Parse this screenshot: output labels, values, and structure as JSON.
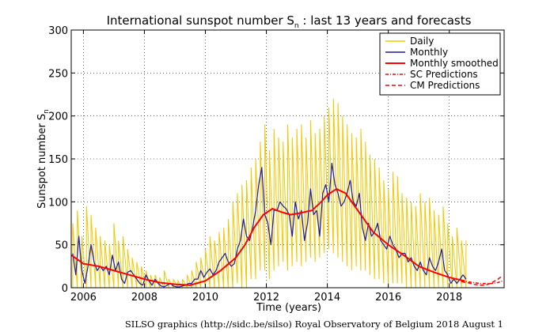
{
  "chart_data": {
    "type": "line",
    "title_main": "International sunspot number S",
    "title_sub": "n",
    "title_rest": " : last 13 years and forecasts",
    "xlabel": "Time (years)",
    "ylabel_main": "Sunspot number S",
    "ylabel_sub": "n",
    "xlim": [
      2005.6,
      2019.8
    ],
    "ylim": [
      0,
      300
    ],
    "x_ticks": [
      2006,
      2008,
      2010,
      2012,
      2014,
      2016,
      2018
    ],
    "y_ticks": [
      0,
      50,
      100,
      150,
      200,
      250,
      300
    ],
    "grid": true,
    "legend_position": "top-right",
    "footer": "SILSO graphics (http://sidc.be/silso)  Royal Observatory of Belgium  2018 August 1",
    "colors": {
      "daily": "#f0c800",
      "monthly": "#1a1aa0",
      "smoothed": "#ff0000",
      "sc": "#ff0000",
      "cm": "#ff0000"
    },
    "series": [
      {
        "name": "Daily",
        "style": "daily",
        "x": [
          2005.65,
          2005.8,
          2005.95,
          2006.1,
          2006.25,
          2006.4,
          2006.55,
          2006.7,
          2006.85,
          2007.0,
          2007.15,
          2007.3,
          2007.45,
          2007.6,
          2007.75,
          2007.9,
          2008.05,
          2008.2,
          2008.35,
          2008.5,
          2008.65,
          2008.8,
          2008.95,
          2009.1,
          2009.25,
          2009.4,
          2009.55,
          2009.7,
          2009.85,
          2010.0,
          2010.15,
          2010.3,
          2010.45,
          2010.6,
          2010.75,
          2010.9,
          2011.05,
          2011.2,
          2011.35,
          2011.5,
          2011.65,
          2011.8,
          2011.95,
          2012.1,
          2012.25,
          2012.4,
          2012.55,
          2012.7,
          2012.85,
          2013.0,
          2013.15,
          2013.3,
          2013.45,
          2013.6,
          2013.75,
          2013.9,
          2014.05,
          2014.2,
          2014.35,
          2014.5,
          2014.65,
          2014.8,
          2014.95,
          2015.1,
          2015.25,
          2015.4,
          2015.55,
          2015.7,
          2015.85,
          2016.0,
          2016.15,
          2016.3,
          2016.45,
          2016.6,
          2016.75,
          2016.9,
          2017.05,
          2017.2,
          2017.35,
          2017.5,
          2017.65,
          2017.8,
          2017.95,
          2018.1,
          2018.25,
          2018.4,
          2018.55
        ],
        "y_high": [
          75,
          90,
          60,
          95,
          85,
          70,
          60,
          55,
          50,
          75,
          55,
          60,
          45,
          35,
          30,
          25,
          20,
          15,
          15,
          12,
          20,
          10,
          10,
          8,
          10,
          15,
          20,
          30,
          35,
          45,
          60,
          55,
          65,
          70,
          80,
          100,
          110,
          120,
          125,
          140,
          150,
          170,
          190,
          160,
          185,
          175,
          170,
          190,
          175,
          185,
          190,
          175,
          195,
          180,
          185,
          200,
          210,
          220,
          215,
          200,
          190,
          180,
          175,
          185,
          170,
          155,
          150,
          140,
          125,
          115,
          135,
          130,
          110,
          105,
          100,
          95,
          110,
          100,
          105,
          90,
          85,
          95,
          75,
          60,
          70,
          55,
          55
        ],
        "y_low": [
          0,
          0,
          0,
          0,
          0,
          0,
          0,
          0,
          0,
          0,
          0,
          0,
          0,
          0,
          0,
          0,
          0,
          0,
          0,
          0,
          0,
          0,
          0,
          0,
          0,
          0,
          0,
          0,
          0,
          0,
          0,
          0,
          0,
          0,
          0,
          0,
          5,
          0,
          0,
          10,
          10,
          20,
          20,
          10,
          20,
          25,
          30,
          20,
          25,
          30,
          25,
          30,
          35,
          30,
          35,
          40,
          45,
          40,
          35,
          30,
          25,
          20,
          25,
          20,
          20,
          15,
          10,
          10,
          5,
          5,
          5,
          5,
          5,
          0,
          0,
          0,
          0,
          0,
          0,
          0,
          0,
          0,
          0,
          0,
          0,
          0,
          0
        ]
      },
      {
        "name": "Monthly",
        "style": "monthly",
        "x": [
          2005.65,
          2005.75,
          2005.85,
          2005.95,
          2006.05,
          2006.15,
          2006.25,
          2006.35,
          2006.45,
          2006.55,
          2006.65,
          2006.75,
          2006.85,
          2006.95,
          2007.05,
          2007.15,
          2007.25,
          2007.35,
          2007.45,
          2007.55,
          2007.65,
          2007.75,
          2007.85,
          2007.95,
          2008.05,
          2008.15,
          2008.25,
          2008.35,
          2008.45,
          2008.55,
          2008.65,
          2008.75,
          2008.85,
          2008.95,
          2009.05,
          2009.15,
          2009.25,
          2009.35,
          2009.45,
          2009.55,
          2009.65,
          2009.75,
          2009.85,
          2009.95,
          2010.05,
          2010.15,
          2010.25,
          2010.35,
          2010.45,
          2010.55,
          2010.65,
          2010.75,
          2010.85,
          2010.95,
          2011.05,
          2011.15,
          2011.25,
          2011.35,
          2011.45,
          2011.55,
          2011.65,
          2011.75,
          2011.85,
          2011.95,
          2012.05,
          2012.15,
          2012.25,
          2012.35,
          2012.45,
          2012.55,
          2012.65,
          2012.75,
          2012.85,
          2012.95,
          2013.05,
          2013.15,
          2013.25,
          2013.35,
          2013.45,
          2013.55,
          2013.65,
          2013.75,
          2013.85,
          2013.95,
          2014.05,
          2014.15,
          2014.25,
          2014.35,
          2014.45,
          2014.55,
          2014.65,
          2014.75,
          2014.85,
          2014.95,
          2015.05,
          2015.15,
          2015.25,
          2015.35,
          2015.45,
          2015.55,
          2015.65,
          2015.75,
          2015.85,
          2015.95,
          2016.05,
          2016.15,
          2016.25,
          2016.35,
          2016.45,
          2016.55,
          2016.65,
          2016.75,
          2016.85,
          2016.95,
          2017.05,
          2017.15,
          2017.25,
          2017.35,
          2017.45,
          2017.55,
          2017.65,
          2017.75,
          2017.85,
          2017.95,
          2018.05,
          2018.15,
          2018.25,
          2018.35,
          2018.45,
          2018.55
        ],
        "y": [
          40,
          15,
          60,
          20,
          5,
          25,
          50,
          30,
          20,
          25,
          20,
          25,
          15,
          38,
          20,
          30,
          10,
          5,
          18,
          20,
          15,
          10,
          5,
          3,
          15,
          8,
          3,
          10,
          5,
          2,
          1,
          3,
          5,
          2,
          1,
          1,
          2,
          3,
          5,
          5,
          10,
          10,
          20,
          12,
          18,
          22,
          15,
          20,
          30,
          35,
          40,
          30,
          25,
          28,
          45,
          55,
          80,
          60,
          55,
          70,
          90,
          120,
          140,
          85,
          75,
          50,
          90,
          90,
          100,
          95,
          92,
          85,
          60,
          100,
          80,
          90,
          55,
          75,
          115,
          85,
          90,
          60,
          110,
          120,
          100,
          145,
          120,
          110,
          95,
          100,
          110,
          125,
          100,
          95,
          110,
          70,
          55,
          75,
          60,
          65,
          75,
          55,
          50,
          45,
          60,
          50,
          45,
          35,
          40,
          40,
          30,
          35,
          25,
          20,
          30,
          20,
          15,
          35,
          25,
          20,
          30,
          45,
          20,
          15,
          5,
          10,
          5,
          10,
          15,
          10
        ]
      },
      {
        "name": "Monthly smoothed",
        "style": "smoothed",
        "x": [
          2005.6,
          2006.0,
          2006.5,
          2007.0,
          2007.5,
          2008.0,
          2008.5,
          2009.0,
          2009.5,
          2010.0,
          2010.5,
          2011.0,
          2011.3,
          2011.6,
          2011.9,
          2012.2,
          2012.5,
          2012.8,
          2013.1,
          2013.5,
          2013.8,
          2014.0,
          2014.3,
          2014.6,
          2015.0,
          2015.5,
          2016.0,
          2016.5,
          2017.0,
          2017.5,
          2018.0,
          2018.5
        ],
        "y": [
          38,
          28,
          25,
          20,
          15,
          10,
          6,
          4,
          3,
          8,
          20,
          35,
          50,
          70,
          85,
          92,
          88,
          85,
          87,
          90,
          100,
          108,
          115,
          110,
          90,
          65,
          50,
          38,
          25,
          18,
          12,
          8
        ]
      },
      {
        "name": "SC Predictions",
        "style": "sc",
        "x": [
          2018.4,
          2018.6,
          2018.8,
          2019.0,
          2019.2,
          2019.4,
          2019.6,
          2019.75
        ],
        "y": [
          8,
          7,
          6,
          5,
          5,
          5,
          6,
          8
        ]
      },
      {
        "name": "CM Predictions",
        "style": "cm",
        "x": [
          2018.4,
          2018.6,
          2018.8,
          2019.0,
          2019.2,
          2019.4,
          2019.6,
          2019.75
        ],
        "y": [
          7,
          6,
          4,
          3,
          3,
          6,
          10,
          14
        ]
      }
    ]
  }
}
